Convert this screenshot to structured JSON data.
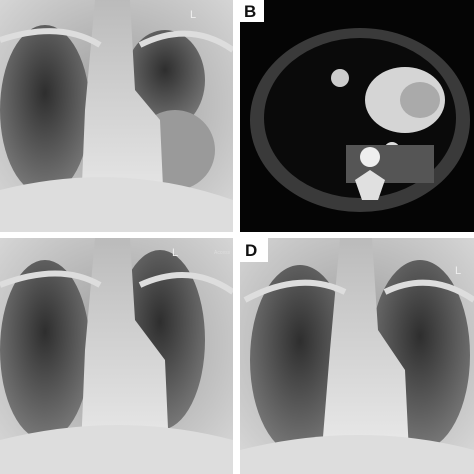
{
  "panels": [
    {
      "marker": "L"
    },
    {
      "letter": "B"
    },
    {
      "marker": "L",
      "note": "Access"
    },
    {
      "letter": "D",
      "marker": "L"
    }
  ]
}
